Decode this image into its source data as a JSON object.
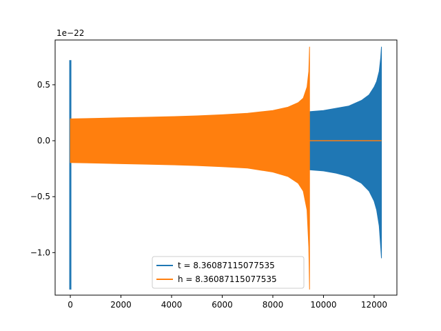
{
  "chart_data": {
    "type": "line",
    "title": "",
    "xlabel": "",
    "ylabel": "",
    "y_offset_label": "1e−22",
    "xlim": [
      -600,
      12900
    ],
    "ylim": [
      -1.38,
      0.9
    ],
    "x_ticks": [
      0,
      2000,
      4000,
      6000,
      8000,
      10000,
      12000
    ],
    "x_tick_labels": [
      "0",
      "2000",
      "4000",
      "6000",
      "8000",
      "10000",
      "12000"
    ],
    "y_ticks": [
      0.5,
      0.0,
      -0.5,
      -1.0
    ],
    "y_tick_labels": [
      "0.5",
      "0.0",
      "−0.5",
      "−1.0"
    ],
    "grid": false,
    "legend_position": "lower-center",
    "series": [
      {
        "name": "t = 8.36087115077535",
        "color": "#1f77b4",
        "segments": [
          {
            "x": [
              0,
              1
            ],
            "envelope_upper": [
              0.72,
              0.72
            ],
            "envelope_lower": [
              -1.33,
              -1.33
            ],
            "kind": "spike"
          },
          {
            "x": [
              9450,
              10000,
              10500,
              11000,
              11500,
              11800,
              12000,
              12100,
              12200,
              12260,
              12290
            ],
            "envelope_upper": [
              0.26,
              0.27,
              0.29,
              0.31,
              0.36,
              0.41,
              0.48,
              0.53,
              0.62,
              0.74,
              0.84
            ],
            "envelope_lower": [
              -0.26,
              -0.27,
              -0.29,
              -0.32,
              -0.38,
              -0.45,
              -0.54,
              -0.62,
              -0.76,
              -0.95,
              -1.05
            ],
            "kind": "band"
          }
        ]
      },
      {
        "name": "h = 8.36087115077535",
        "color": "#ff7f0e",
        "segments": [
          {
            "x": [
              0,
              1000,
              2000,
              3000,
              4000,
              5000,
              6000,
              7000,
              8000,
              8600,
              9000,
              9200,
              9350,
              9420,
              9450
            ],
            "envelope_upper": [
              0.195,
              0.2,
              0.205,
              0.21,
              0.215,
              0.222,
              0.232,
              0.245,
              0.27,
              0.3,
              0.34,
              0.38,
              0.48,
              0.62,
              0.84
            ],
            "envelope_lower": [
              -0.195,
              -0.2,
              -0.205,
              -0.21,
              -0.215,
              -0.222,
              -0.232,
              -0.245,
              -0.28,
              -0.32,
              -0.38,
              -0.45,
              -0.62,
              -0.95,
              -1.33
            ],
            "kind": "band"
          },
          {
            "x": [
              9450,
              12290
            ],
            "y": [
              0.0,
              0.0
            ],
            "kind": "line"
          }
        ]
      }
    ]
  }
}
